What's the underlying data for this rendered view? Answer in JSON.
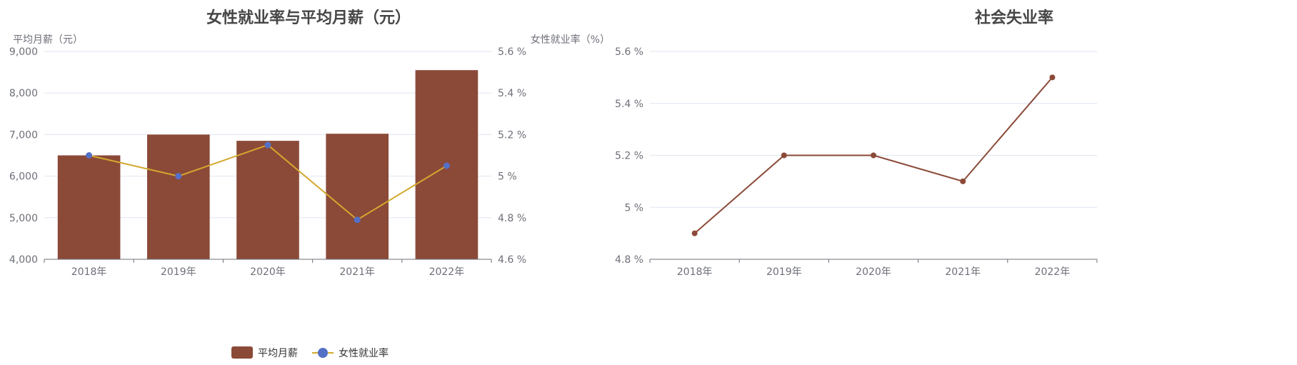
{
  "chart_data": [
    {
      "type": "bar",
      "title": "女性就业率与平均月薪（元）",
      "categories": [
        "2018年",
        "2019年",
        "2020年",
        "2021年",
        "2022年"
      ],
      "y_left": {
        "label": "平均月薪（元）",
        "ylim": [
          4000,
          9000
        ],
        "ticks": [
          "4,000",
          "5,000",
          "6,000",
          "7,000",
          "8,000",
          "9,000"
        ],
        "tick_values": [
          4000,
          5000,
          6000,
          7000,
          8000,
          9000
        ]
      },
      "y_right": {
        "label": "女性就业率（%）",
        "ylim": [
          4.6,
          5.6
        ],
        "ticks": [
          "4.6 %",
          "4.8 %",
          "5 %",
          "5.2 %",
          "5.4 %",
          "5.6 %"
        ],
        "tick_values": [
          4.6,
          4.8,
          5.0,
          5.2,
          5.4,
          5.6
        ]
      },
      "series": [
        {
          "name": "平均月薪",
          "type": "bar",
          "axis": "left",
          "color": "#8b4a38",
          "values": [
            6500,
            7000,
            6850,
            7020,
            8550
          ]
        },
        {
          "name": "女性就业率",
          "type": "line",
          "axis": "right",
          "color": "#d4a82e",
          "marker_color": "#5470c6",
          "values": [
            5.1,
            5.0,
            5.15,
            4.79,
            5.05
          ]
        }
      ],
      "grid": true,
      "legend": "bottom-center"
    },
    {
      "type": "line",
      "title": "社会失业率",
      "categories": [
        "2018年",
        "2019年",
        "2020年",
        "2021年",
        "2022年"
      ],
      "y": {
        "ylim": [
          4.8,
          5.6
        ],
        "ticks": [
          "4.8 %",
          "5 %",
          "5.2 %",
          "5.4 %",
          "5.6 %"
        ],
        "tick_values": [
          4.8,
          5.0,
          5.2,
          5.4,
          5.6
        ]
      },
      "series": [
        {
          "name": "",
          "color": "#8b4a38",
          "values": [
            4.9,
            5.2,
            5.2,
            5.1,
            5.5
          ]
        }
      ],
      "grid": true,
      "legend": "none"
    }
  ]
}
